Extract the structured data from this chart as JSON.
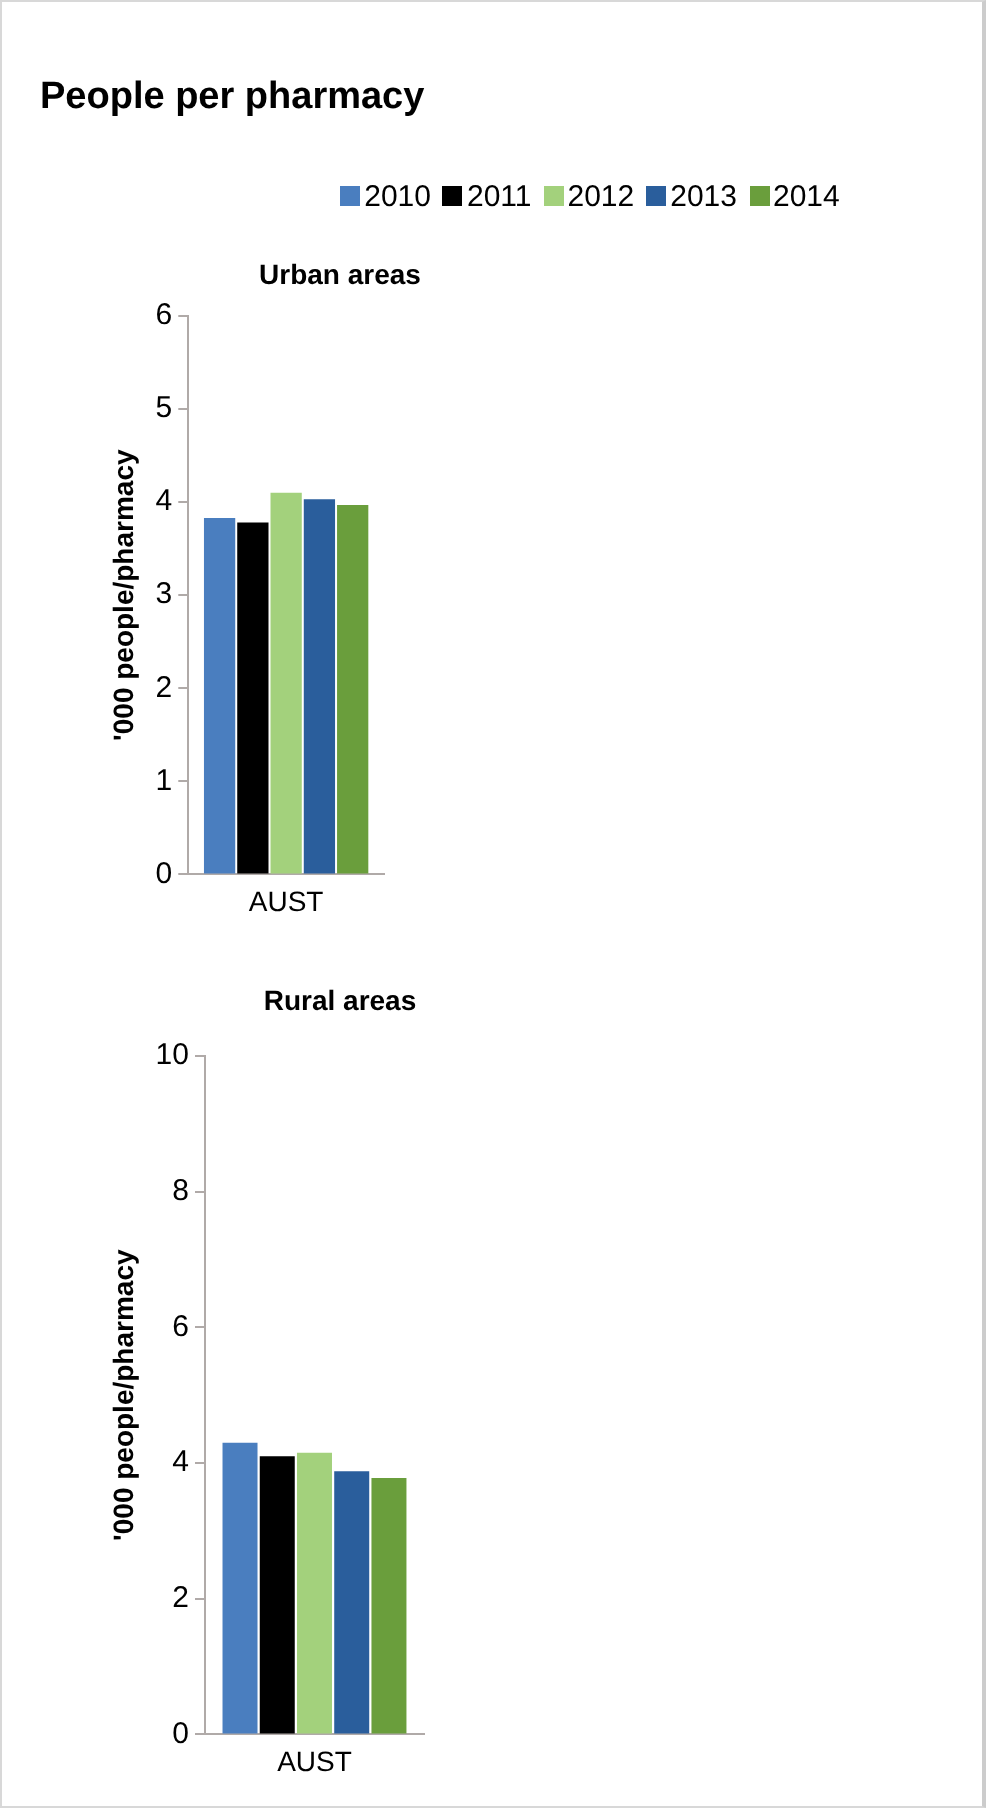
{
  "chart_data": [
    {
      "type": "bar",
      "title": "People per pharmacy",
      "subtitle": "Urban areas",
      "ylabel": "'000 people/pharmacy",
      "categories": [
        "AUST"
      ],
      "ylim": [
        0,
        6
      ],
      "yticks": [
        0,
        1,
        2,
        3,
        4,
        5,
        6
      ],
      "legend": "top",
      "series": [
        {
          "name": "2010",
          "color": "#4a7ebf",
          "values": [
            3.83
          ]
        },
        {
          "name": "2011",
          "color": "#000000",
          "values": [
            3.78
          ]
        },
        {
          "name": "2012",
          "color": "#a3d17c",
          "values": [
            4.1
          ]
        },
        {
          "name": "2013",
          "color": "#2a5e9c",
          "values": [
            4.03
          ]
        },
        {
          "name": "2014",
          "color": "#6a9e3c",
          "values": [
            3.97
          ]
        }
      ]
    },
    {
      "type": "bar",
      "title": "Rural areas",
      "ylabel": "'000 people/pharmacy",
      "categories": [
        "AUST"
      ],
      "ylim": [
        0,
        10
      ],
      "yticks": [
        0,
        2,
        4,
        6,
        8,
        10
      ],
      "series": [
        {
          "color": "#4a7ebf",
          "values": [
            4.3
          ]
        },
        {
          "color": "#000000",
          "values": [
            4.1
          ]
        },
        {
          "color": "#a3d17c",
          "values": [
            4.15
          ]
        },
        {
          "color": "#2a5e9c",
          "values": [
            3.88
          ]
        },
        {
          "color": "#6a9e3c",
          "values": [
            3.78
          ]
        }
      ]
    }
  ]
}
